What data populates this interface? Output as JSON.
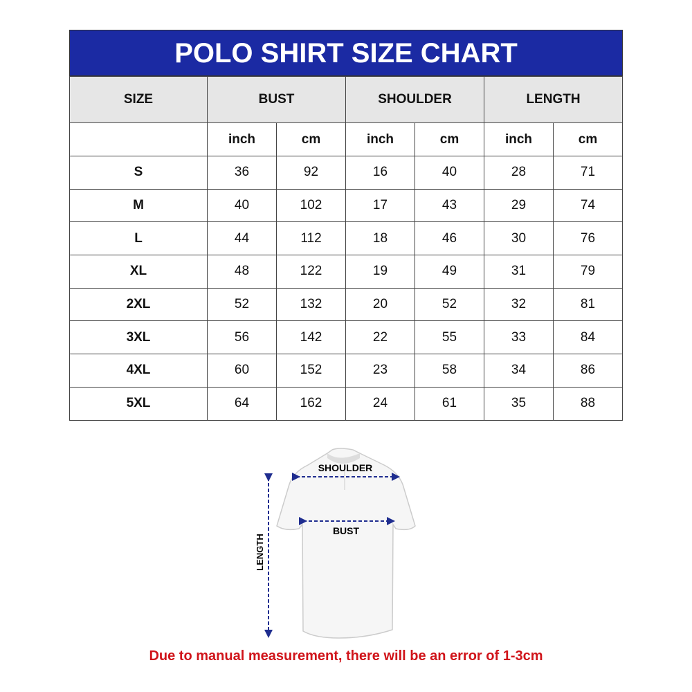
{
  "title": "POLO SHIRT SIZE CHART",
  "headers": [
    "SIZE",
    "BUST",
    "SHOULDER",
    "LENGTH"
  ],
  "units": [
    "inch",
    "cm",
    "inch",
    "cm",
    "inch",
    "cm"
  ],
  "rows": [
    [
      "S",
      "36",
      "92",
      "16",
      "40",
      "28",
      "71"
    ],
    [
      "M",
      "40",
      "102",
      "17",
      "43",
      "29",
      "74"
    ],
    [
      "L",
      "44",
      "112",
      "18",
      "46",
      "30",
      "76"
    ],
    [
      "XL",
      "48",
      "122",
      "19",
      "49",
      "31",
      "79"
    ],
    [
      "2XL",
      "52",
      "132",
      "20",
      "52",
      "32",
      "81"
    ],
    [
      "3XL",
      "56",
      "142",
      "22",
      "55",
      "33",
      "84"
    ],
    [
      "4XL",
      "60",
      "152",
      "23",
      "58",
      "34",
      "86"
    ],
    [
      "5XL",
      "64",
      "162",
      "24",
      "61",
      "35",
      "88"
    ]
  ],
  "diagram": {
    "shoulder": "SHOULDER",
    "bust": "BUST",
    "length": "LENGTH"
  },
  "note": "Due to manual measurement, there will be an error of 1-3cm",
  "colors": {
    "header_bg": "#1b2aa3",
    "note": "#d0141a",
    "arrow": "#1f2d8f"
  }
}
